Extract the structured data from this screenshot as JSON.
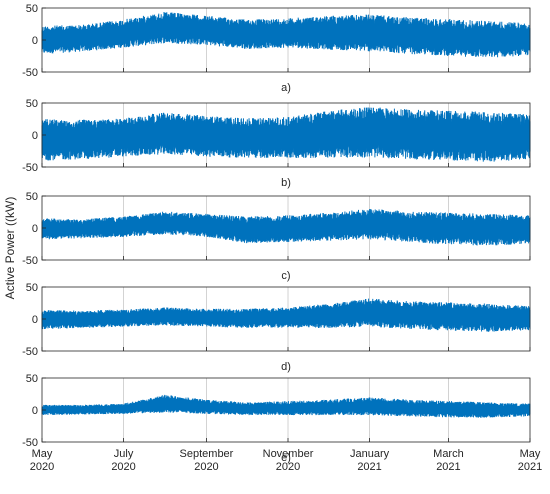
{
  "figure": {
    "ylabel": "Active Power ((kW)",
    "series_color": "#0072BD",
    "axis_color": "#262626",
    "grid_color": "#C8C8C8",
    "x_ticks": [
      {
        "month": "May",
        "year": "2020"
      },
      {
        "month": "July",
        "year": "2020"
      },
      {
        "month": "September",
        "year": "2020"
      },
      {
        "month": "November",
        "year": "2020"
      },
      {
        "month": "January",
        "year": "2021"
      },
      {
        "month": "March",
        "year": "2021"
      },
      {
        "month": "May",
        "year": "2021"
      }
    ]
  },
  "chart_data": [
    {
      "type": "line",
      "panel_label": "a)",
      "x_range": [
        "2020-05-01",
        "2021-05-01"
      ],
      "ylim": [
        -50,
        50
      ],
      "yticks": [
        -50,
        0,
        50
      ],
      "grid": "vertical",
      "series": [
        {
          "x": [
            "2020-05",
            "2020-06",
            "2020-07",
            "2020-08",
            "2020-09",
            "2020-10",
            "2020-11",
            "2020-12",
            "2021-01",
            "2021-02",
            "2021-03",
            "2021-04",
            "2021-05"
          ],
          "upper": [
            22,
            24,
            32,
            44,
            38,
            32,
            34,
            38,
            40,
            35,
            33,
            30,
            26
          ],
          "lower": [
            -22,
            -18,
            -12,
            -5,
            -8,
            -14,
            -12,
            -15,
            -18,
            -22,
            -25,
            -28,
            -24
          ]
        }
      ]
    },
    {
      "type": "line",
      "panel_label": "b)",
      "x_range": [
        "2020-05-01",
        "2021-05-01"
      ],
      "ylim": [
        -50,
        50
      ],
      "yticks": [
        -50,
        0,
        50
      ],
      "grid": "vertical",
      "series": [
        {
          "x": [
            "2020-05",
            "2020-06",
            "2020-07",
            "2020-08",
            "2020-09",
            "2020-10",
            "2020-11",
            "2020-12",
            "2021-01",
            "2021-02",
            "2021-03",
            "2021-04",
            "2021-05"
          ],
          "upper": [
            25,
            24,
            26,
            36,
            30,
            26,
            28,
            38,
            44,
            40,
            38,
            36,
            32
          ],
          "lower": [
            -40,
            -38,
            -34,
            -30,
            -34,
            -36,
            -36,
            -36,
            -35,
            -38,
            -40,
            -42,
            -38
          ]
        }
      ]
    },
    {
      "type": "line",
      "panel_label": "c)",
      "x_range": [
        "2020-05-01",
        "2021-05-01"
      ],
      "ylim": [
        -50,
        50
      ],
      "yticks": [
        -50,
        0,
        50
      ],
      "grid": "vertical",
      "series": [
        {
          "x": [
            "2020-05",
            "2020-06",
            "2020-07",
            "2020-08",
            "2020-09",
            "2020-10",
            "2020-11",
            "2020-12",
            "2021-01",
            "2021-02",
            "2021-03",
            "2021-04",
            "2021-05"
          ],
          "upper": [
            15,
            14,
            18,
            26,
            22,
            18,
            20,
            24,
            30,
            26,
            24,
            22,
            20
          ],
          "lower": [
            -18,
            -16,
            -14,
            -10,
            -14,
            -24,
            -22,
            -20,
            -18,
            -22,
            -26,
            -28,
            -24
          ]
        }
      ]
    },
    {
      "type": "line",
      "panel_label": "d)",
      "x_range": [
        "2020-05-01",
        "2021-05-01"
      ],
      "ylim": [
        -50,
        50
      ],
      "yticks": [
        -50,
        0,
        50
      ],
      "grid": "vertical",
      "series": [
        {
          "x": [
            "2020-05",
            "2020-06",
            "2020-07",
            "2020-08",
            "2020-09",
            "2020-10",
            "2020-11",
            "2020-12",
            "2021-01",
            "2021-02",
            "2021-03",
            "2021-04",
            "2021-05"
          ],
          "upper": [
            14,
            13,
            15,
            18,
            16,
            16,
            18,
            24,
            32,
            28,
            26,
            24,
            20
          ],
          "lower": [
            -16,
            -14,
            -12,
            -10,
            -12,
            -14,
            -14,
            -14,
            -12,
            -16,
            -18,
            -20,
            -18
          ]
        }
      ]
    },
    {
      "type": "line",
      "panel_label": "e)",
      "x_range": [
        "2020-05-01",
        "2021-05-01"
      ],
      "ylim": [
        -50,
        50
      ],
      "yticks": [
        -50,
        0,
        50
      ],
      "grid": "vertical",
      "series": [
        {
          "x": [
            "2020-05",
            "2020-06",
            "2020-07",
            "2020-08",
            "2020-09",
            "2020-10",
            "2020-11",
            "2020-12",
            "2021-01",
            "2021-02",
            "2021-03",
            "2021-04",
            "2021-05"
          ],
          "upper": [
            8,
            8,
            10,
            24,
            16,
            12,
            14,
            16,
            20,
            16,
            14,
            12,
            10
          ],
          "lower": [
            -8,
            -7,
            -6,
            -4,
            -6,
            -8,
            -8,
            -8,
            -8,
            -10,
            -12,
            -12,
            -10
          ]
        }
      ]
    }
  ]
}
